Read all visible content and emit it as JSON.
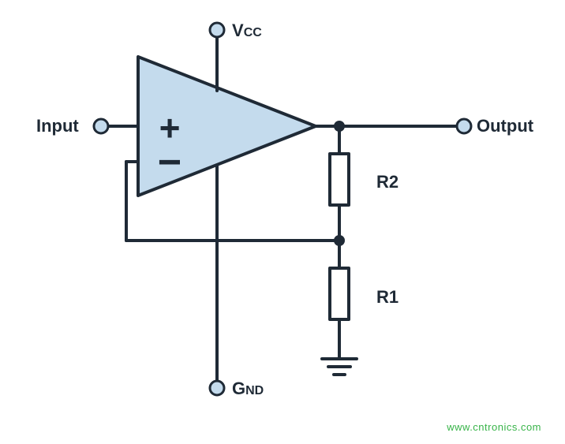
{
  "diagram": {
    "type": "circuit-schematic",
    "background_color": "#ffffff",
    "wire_color": "#1f2a36",
    "wire_width": 4,
    "opamp_fill": "#c4dbed",
    "opamp_stroke": "#1f2a36",
    "terminal_fill": "#c4dbed",
    "terminal_stroke": "#1f2a36",
    "node_fill": "#1f2a36",
    "resistor_fill": "#ffffff",
    "label_color": "#1f2a36",
    "label_fontsize": 22,
    "small_caps_fontsize": 16,
    "watermark_color": "#38b449"
  },
  "labels": {
    "input": "Input",
    "output": "Output",
    "vcc_main": "V",
    "vcc_sub": "CC",
    "gnd_main": "G",
    "gnd_sub": "ND",
    "r1": "R1",
    "r2": "R2",
    "plus": "+",
    "minus": "−"
  },
  "watermark": "www.cntronics.com"
}
